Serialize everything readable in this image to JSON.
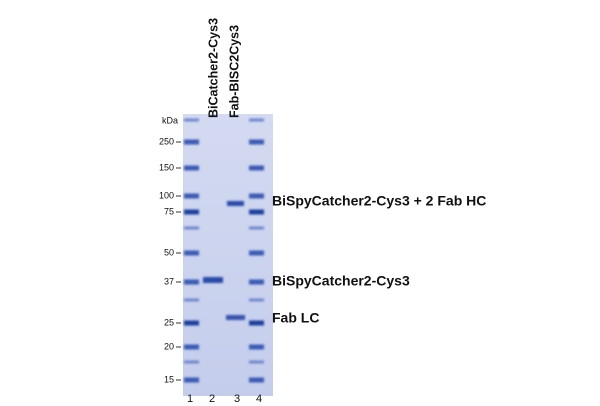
{
  "unit_label": "kDa",
  "markers": [
    "250",
    "150",
    "100",
    "75",
    "50",
    "37",
    "25",
    "20",
    "15"
  ],
  "lane_numbers": [
    "1",
    "2",
    "3",
    "4"
  ],
  "lane_headers": [
    "BiCatcher2-Cys3",
    "Fab-BISC2Cys3"
  ],
  "band_labels": [
    "BiSpyCatcher2-Cys3 + 2 Fab HC",
    "BiSpyCatcher2-Cys3",
    "Fab LC"
  ]
}
